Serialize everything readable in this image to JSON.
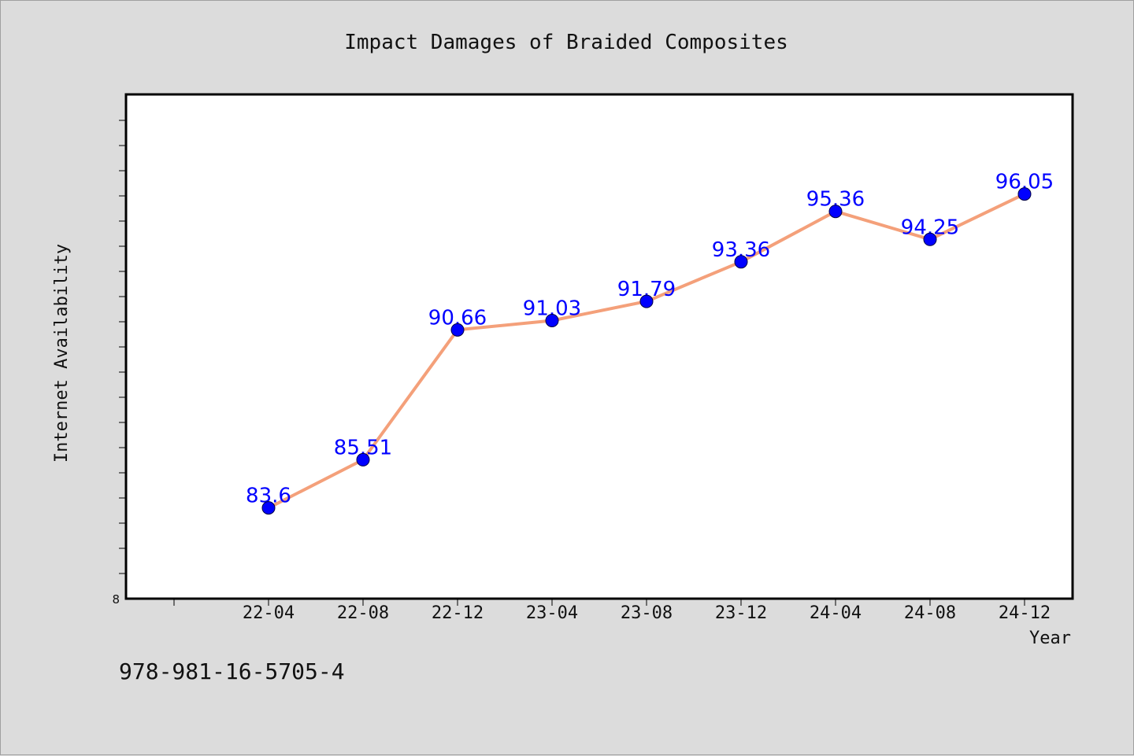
{
  "chart_data": {
    "type": "line",
    "title": "Impact Damages of Braided Composites",
    "xlabel": "Year",
    "ylabel": "Internet Availability",
    "categories": [
      "22-04",
      "22-08",
      "22-12",
      "23-04",
      "23-08",
      "23-12",
      "24-04",
      "24-08",
      "24-12"
    ],
    "series": [
      {
        "values": [
          83.6,
          85.51,
          90.66,
          91.03,
          91.79,
          93.36,
          95.36,
          94.25,
          96.05
        ],
        "line_color": "#f4a07a",
        "marker_color": "#0000ff"
      }
    ],
    "data_labels": [
      "83.6",
      "85.51",
      "90.66",
      "91.03",
      "91.79",
      "93.36",
      "95.36",
      "94.25",
      "96.05"
    ],
    "y_tick_labels": [
      "8"
    ],
    "ylim": [
      80,
      100
    ],
    "grid": false,
    "legend": false
  },
  "footer": {
    "isbn": "978-981-16-5705-4"
  },
  "colors": {
    "background": "#dcdcdc",
    "plot_background": "#ffffff",
    "axis": "#000000"
  }
}
